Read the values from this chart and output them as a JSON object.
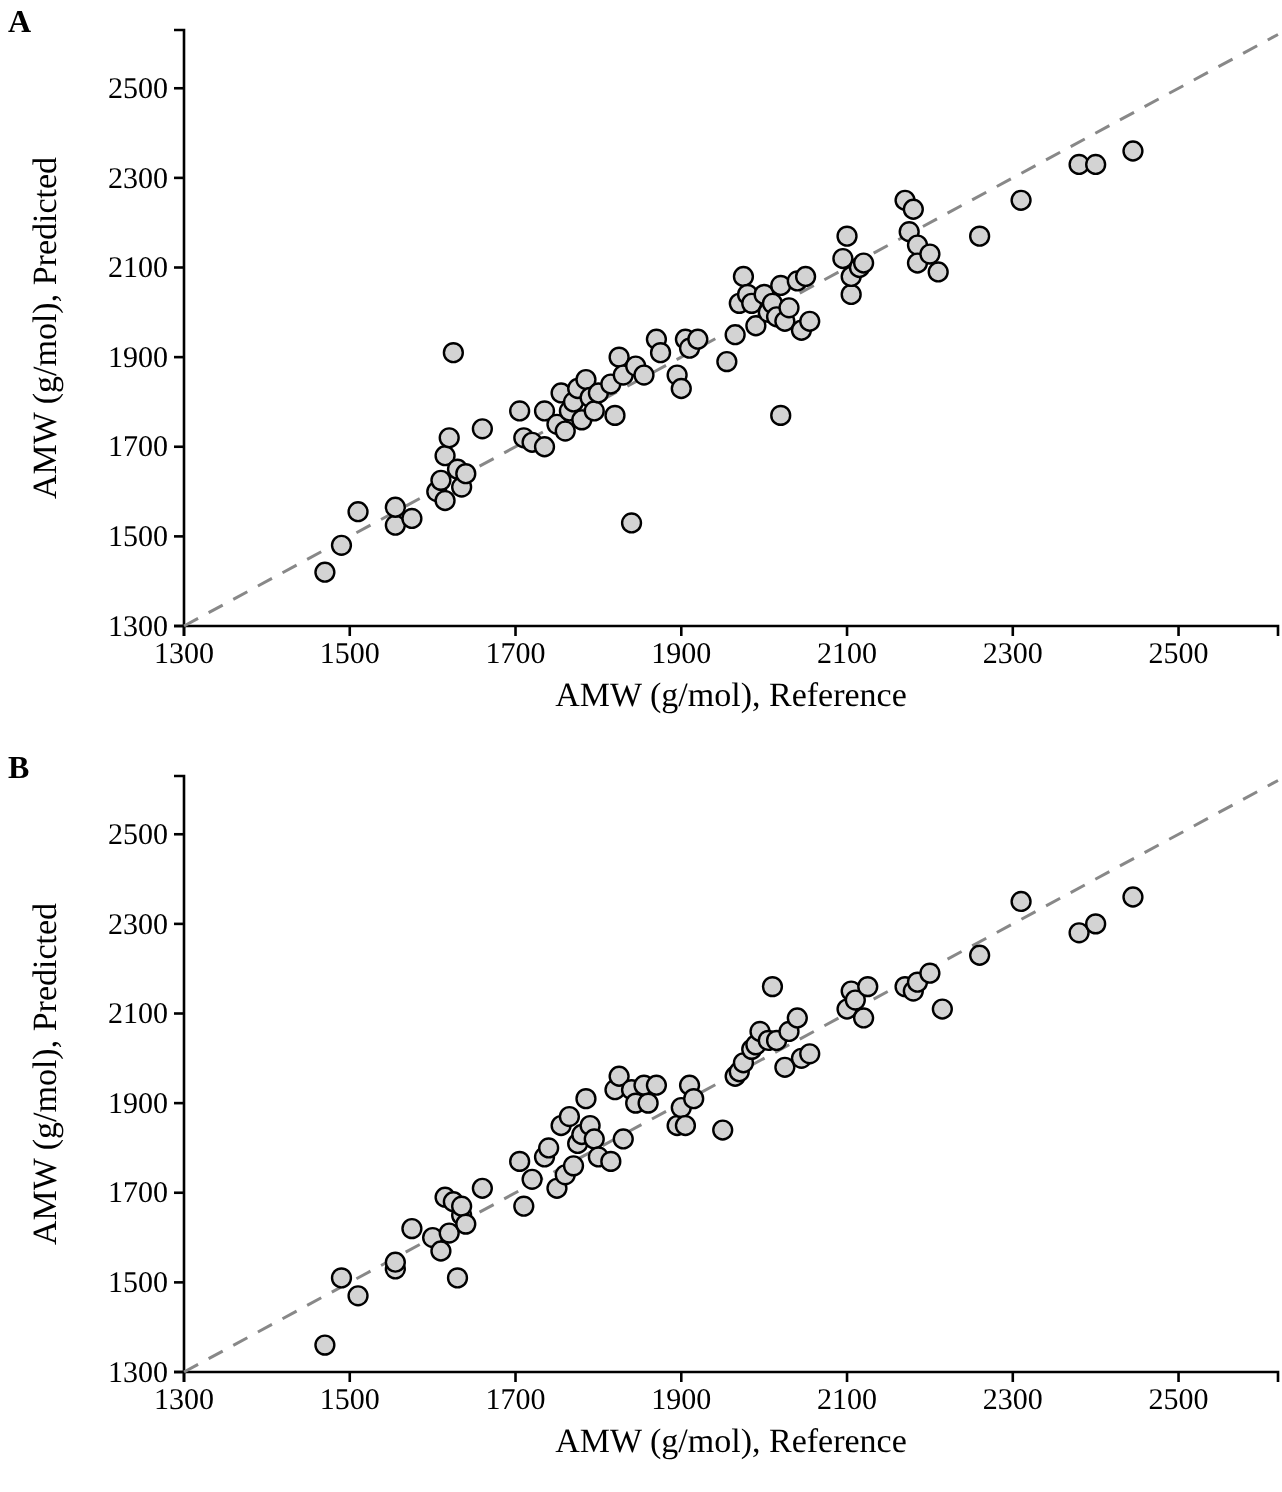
{
  "chart_data": [
    {
      "type": "scatter",
      "title": "A",
      "xlabel": "AMW (g/mol), Reference",
      "ylabel": "AMW (g/mol), Predicted",
      "xlim": [
        1300,
        2620
      ],
      "ylim": [
        1300,
        2630
      ],
      "xticks": [
        1300,
        1500,
        1700,
        1900,
        2100,
        2300,
        2500
      ],
      "yticks": [
        1300,
        1500,
        1700,
        1900,
        2100,
        2300,
        2500
      ],
      "grid": false,
      "marker": "circle",
      "series": [
        {
          "type": "line",
          "color": "#888888",
          "line_style": "dashed",
          "marker": "none",
          "x": [
            1300,
            2620
          ],
          "values": [
            1300,
            2620
          ]
        },
        {
          "color": "#d3d3d3",
          "x": [
            1470,
            1490,
            1510,
            1555,
            1555,
            1575,
            1605,
            1610,
            1615,
            1615,
            1620,
            1625,
            1630,
            1635,
            1640,
            1660,
            1705,
            1710,
            1720,
            1735,
            1735,
            1750,
            1755,
            1760,
            1765,
            1770,
            1775,
            1780,
            1785,
            1790,
            1795,
            1800,
            1815,
            1820,
            1825,
            1830,
            1840,
            1845,
            1855,
            1870,
            1875,
            1895,
            1900,
            1905,
            1910,
            1920,
            1955,
            1965,
            1970,
            1975,
            1980,
            1985,
            1990,
            2000,
            2005,
            2010,
            2015,
            2020,
            2020,
            2025,
            2030,
            2040,
            2045,
            2050,
            2055,
            2095,
            2100,
            2105,
            2105,
            2115,
            2120,
            2170,
            2175,
            2180,
            2185,
            2185,
            2200,
            2210,
            2260,
            2310,
            2380,
            2400,
            2445
          ],
          "values": [
            1420,
            1480,
            1555,
            1525,
            1565,
            1540,
            1600,
            1625,
            1580,
            1680,
            1720,
            1910,
            1650,
            1610,
            1640,
            1740,
            1780,
            1720,
            1710,
            1700,
            1780,
            1750,
            1820,
            1735,
            1780,
            1800,
            1830,
            1760,
            1850,
            1810,
            1780,
            1820,
            1840,
            1770,
            1900,
            1860,
            1530,
            1880,
            1860,
            1940,
            1910,
            1860,
            1830,
            1940,
            1920,
            1940,
            1890,
            1950,
            2020,
            2080,
            2040,
            2020,
            1970,
            2040,
            2000,
            2020,
            1990,
            1770,
            2060,
            1980,
            2010,
            2070,
            1960,
            2080,
            1980,
            2120,
            2170,
            2040,
            2080,
            2100,
            2110,
            2250,
            2180,
            2230,
            2150,
            2110,
            2130,
            2090,
            2170,
            2250,
            2330,
            2330,
            2360
          ]
        }
      ]
    },
    {
      "type": "scatter",
      "title": "B",
      "xlabel": "AMW (g/mol), Reference",
      "ylabel": "AMW (g/mol), Predicted",
      "xlim": [
        1300,
        2620
      ],
      "ylim": [
        1300,
        2630
      ],
      "xticks": [
        1300,
        1500,
        1700,
        1900,
        2100,
        2300,
        2500
      ],
      "yticks": [
        1300,
        1500,
        1700,
        1900,
        2100,
        2300,
        2500
      ],
      "grid": false,
      "marker": "circle",
      "series": [
        {
          "type": "line",
          "color": "#888888",
          "line_style": "dashed",
          "marker": "none",
          "x": [
            1300,
            2620
          ],
          "values": [
            1300,
            2620
          ]
        },
        {
          "color": "#d3d3d3",
          "x": [
            1470,
            1490,
            1510,
            1555,
            1555,
            1575,
            1600,
            1610,
            1615,
            1620,
            1625,
            1630,
            1635,
            1635,
            1640,
            1660,
            1705,
            1710,
            1720,
            1735,
            1740,
            1750,
            1755,
            1760,
            1765,
            1770,
            1775,
            1780,
            1785,
            1790,
            1795,
            1800,
            1815,
            1820,
            1825,
            1830,
            1840,
            1845,
            1855,
            1860,
            1870,
            1895,
            1900,
            1905,
            1910,
            1915,
            1950,
            1965,
            1970,
            1975,
            1985,
            1990,
            1995,
            2005,
            2010,
            2015,
            2025,
            2030,
            2040,
            2045,
            2055,
            2100,
            2105,
            2110,
            2120,
            2125,
            2170,
            2180,
            2185,
            2200,
            2215,
            2260,
            2310,
            2380,
            2400,
            2445
          ],
          "values": [
            1360,
            1510,
            1470,
            1530,
            1545,
            1620,
            1600,
            1570,
            1690,
            1610,
            1680,
            1510,
            1650,
            1670,
            1630,
            1710,
            1770,
            1670,
            1730,
            1780,
            1800,
            1710,
            1850,
            1740,
            1870,
            1760,
            1810,
            1830,
            1910,
            1850,
            1820,
            1780,
            1770,
            1930,
            1960,
            1820,
            1930,
            1900,
            1940,
            1900,
            1940,
            1850,
            1890,
            1850,
            1940,
            1910,
            1840,
            1960,
            1970,
            1990,
            2020,
            2030,
            2060,
            2040,
            2160,
            2040,
            1980,
            2060,
            2090,
            2000,
            2010,
            2110,
            2150,
            2130,
            2090,
            2160,
            2160,
            2150,
            2170,
            2190,
            2110,
            2230,
            2350,
            2280,
            2300,
            2360
          ]
        }
      ]
    }
  ]
}
